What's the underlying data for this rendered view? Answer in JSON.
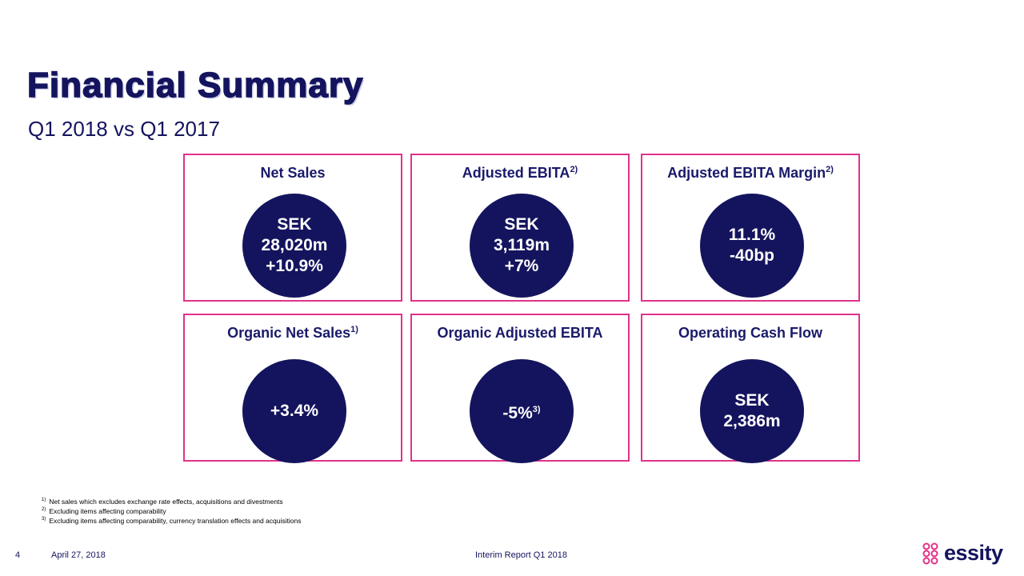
{
  "header": {
    "title": "Financial Summary",
    "subtitle": "Q1 2018 vs Q1 2017"
  },
  "cards": [
    {
      "title": "Net Sales",
      "lines": [
        "SEK",
        "28,020m",
        "+10.9%"
      ]
    },
    {
      "title": "Adjusted EBITA",
      "note": "2)",
      "lines": [
        "SEK",
        "3,119m",
        "+7%"
      ]
    },
    {
      "title": "Adjusted EBITA Margin",
      "note": "2)",
      "lines": [
        "11.1%",
        "-40bp"
      ]
    },
    {
      "title": "Organic Net Sales",
      "note": "1)",
      "lines": [
        "+3.4%"
      ]
    },
    {
      "title": "Organic Adjusted EBITA",
      "lines": [
        "-5%"
      ],
      "line_note": "3)"
    },
    {
      "title": "Operating Cash Flow",
      "lines": [
        "SEK",
        "2,386m"
      ]
    }
  ],
  "footnotes": [
    {
      "marker": "1)",
      "text": "Net sales which excludes exchange rate effects, acquisitions and divestments"
    },
    {
      "marker": "2)",
      "text": "Excluding items affecting comparability"
    },
    {
      "marker": "3)",
      "text": "Excluding items affecting comparability, currency translation effects and acquisitions"
    }
  ],
  "footer": {
    "page": "4",
    "date": "April 27, 2018",
    "report": "Interim Report Q1 2018",
    "logo": "essity"
  }
}
